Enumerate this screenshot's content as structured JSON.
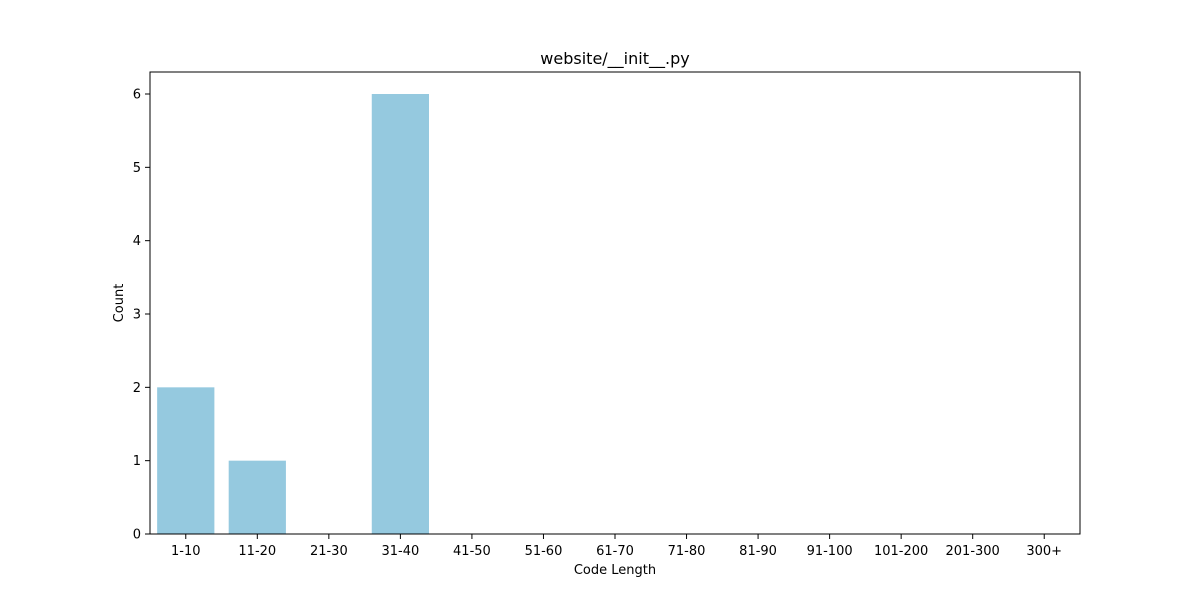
{
  "chart_data": {
    "type": "bar",
    "title": "website/__init__.py",
    "xlabel": "Code Length",
    "ylabel": "Count",
    "categories": [
      "1-10",
      "11-20",
      "21-30",
      "31-40",
      "41-50",
      "51-60",
      "61-70",
      "71-80",
      "81-90",
      "91-100",
      "101-200",
      "201-300",
      "300+"
    ],
    "values": [
      2,
      1,
      0,
      6,
      0,
      0,
      0,
      0,
      0,
      0,
      0,
      0,
      0
    ],
    "yticks": [
      0,
      1,
      2,
      3,
      4,
      5,
      6
    ],
    "ylim": [
      0,
      6.3
    ],
    "grid": false,
    "legend": "none",
    "bar_color": "#95c9df"
  }
}
